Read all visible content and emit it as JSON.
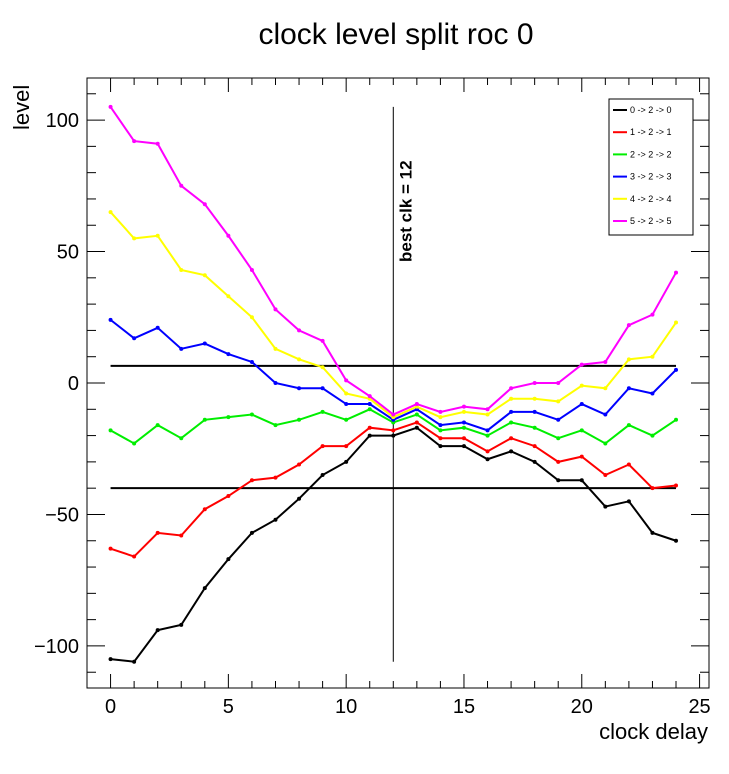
{
  "chart_data": {
    "type": "line",
    "title": "clock level split roc 0",
    "xlabel": "clock delay",
    "ylabel": "level",
    "xlim": [
      -1,
      25.4
    ],
    "ylim": [
      -116,
      116
    ],
    "xticks": [
      0,
      5,
      10,
      15,
      20,
      25
    ],
    "yticks": [
      -100,
      -50,
      0,
      50,
      100
    ],
    "x": [
      0,
      1,
      2,
      3,
      4,
      5,
      6,
      7,
      8,
      9,
      10,
      11,
      12,
      13,
      14,
      15,
      16,
      17,
      18,
      19,
      20,
      21,
      22,
      23,
      24
    ],
    "series": [
      {
        "name": "0 -> 2 -> 0",
        "color": "#000000",
        "values": [
          -105,
          -106,
          -94,
          -92,
          -78,
          -67,
          -57,
          -52,
          -44,
          -35,
          -30,
          -20,
          -20,
          -17,
          -24,
          -24,
          -29,
          -26,
          -30,
          -37,
          -37,
          -47,
          -45,
          -57,
          -60
        ]
      },
      {
        "name": "1 -> 2 -> 1",
        "color": "#ff0000",
        "values": [
          -63,
          -66,
          -57,
          -58,
          -48,
          -43,
          -37,
          -36,
          -31,
          -24,
          -24,
          -17,
          -18,
          -15,
          -21,
          -21,
          -26,
          -21,
          -24,
          -30,
          -28,
          -35,
          -31,
          -40,
          -39
        ]
      },
      {
        "name": "2 -> 2 -> 2",
        "color": "#00ee00",
        "values": [
          -18,
          -23,
          -16,
          -21,
          -14,
          -13,
          -12,
          -16,
          -14,
          -11,
          -14,
          -10,
          -15,
          -12,
          -18,
          -17,
          -20,
          -15,
          -17,
          -21,
          -18,
          -23,
          -16,
          -20,
          -14
        ]
      },
      {
        "name": "3 -> 2 -> 3",
        "color": "#0000ff",
        "values": [
          24,
          17,
          21,
          13,
          15,
          11,
          8,
          0,
          -2,
          -2,
          -8,
          -8,
          -14,
          -10,
          -16,
          -15,
          -18,
          -11,
          -11,
          -14,
          -8,
          -12,
          -2,
          -4,
          5
        ]
      },
      {
        "name": "4 -> 2 -> 4",
        "color": "#ffff00",
        "values": [
          65,
          55,
          56,
          43,
          41,
          33,
          25,
          13,
          9,
          6,
          -4,
          -6,
          -13,
          -9,
          -13,
          -11,
          -12,
          -6,
          -6,
          -7,
          -1,
          -2,
          9,
          10,
          23
        ]
      },
      {
        "name": "5 -> 2 -> 5",
        "color": "#ff00ff",
        "values": [
          105,
          92,
          91,
          75,
          68,
          56,
          43,
          28,
          20,
          16,
          1,
          -5,
          -12,
          -8,
          -11,
          -9,
          -10,
          -2,
          0,
          0,
          7,
          8,
          22,
          26,
          42
        ]
      }
    ],
    "hlines": [
      6.5,
      -40
    ],
    "vline": {
      "x": 12,
      "label": "best clk = 12"
    },
    "legend_position": "top-right"
  }
}
